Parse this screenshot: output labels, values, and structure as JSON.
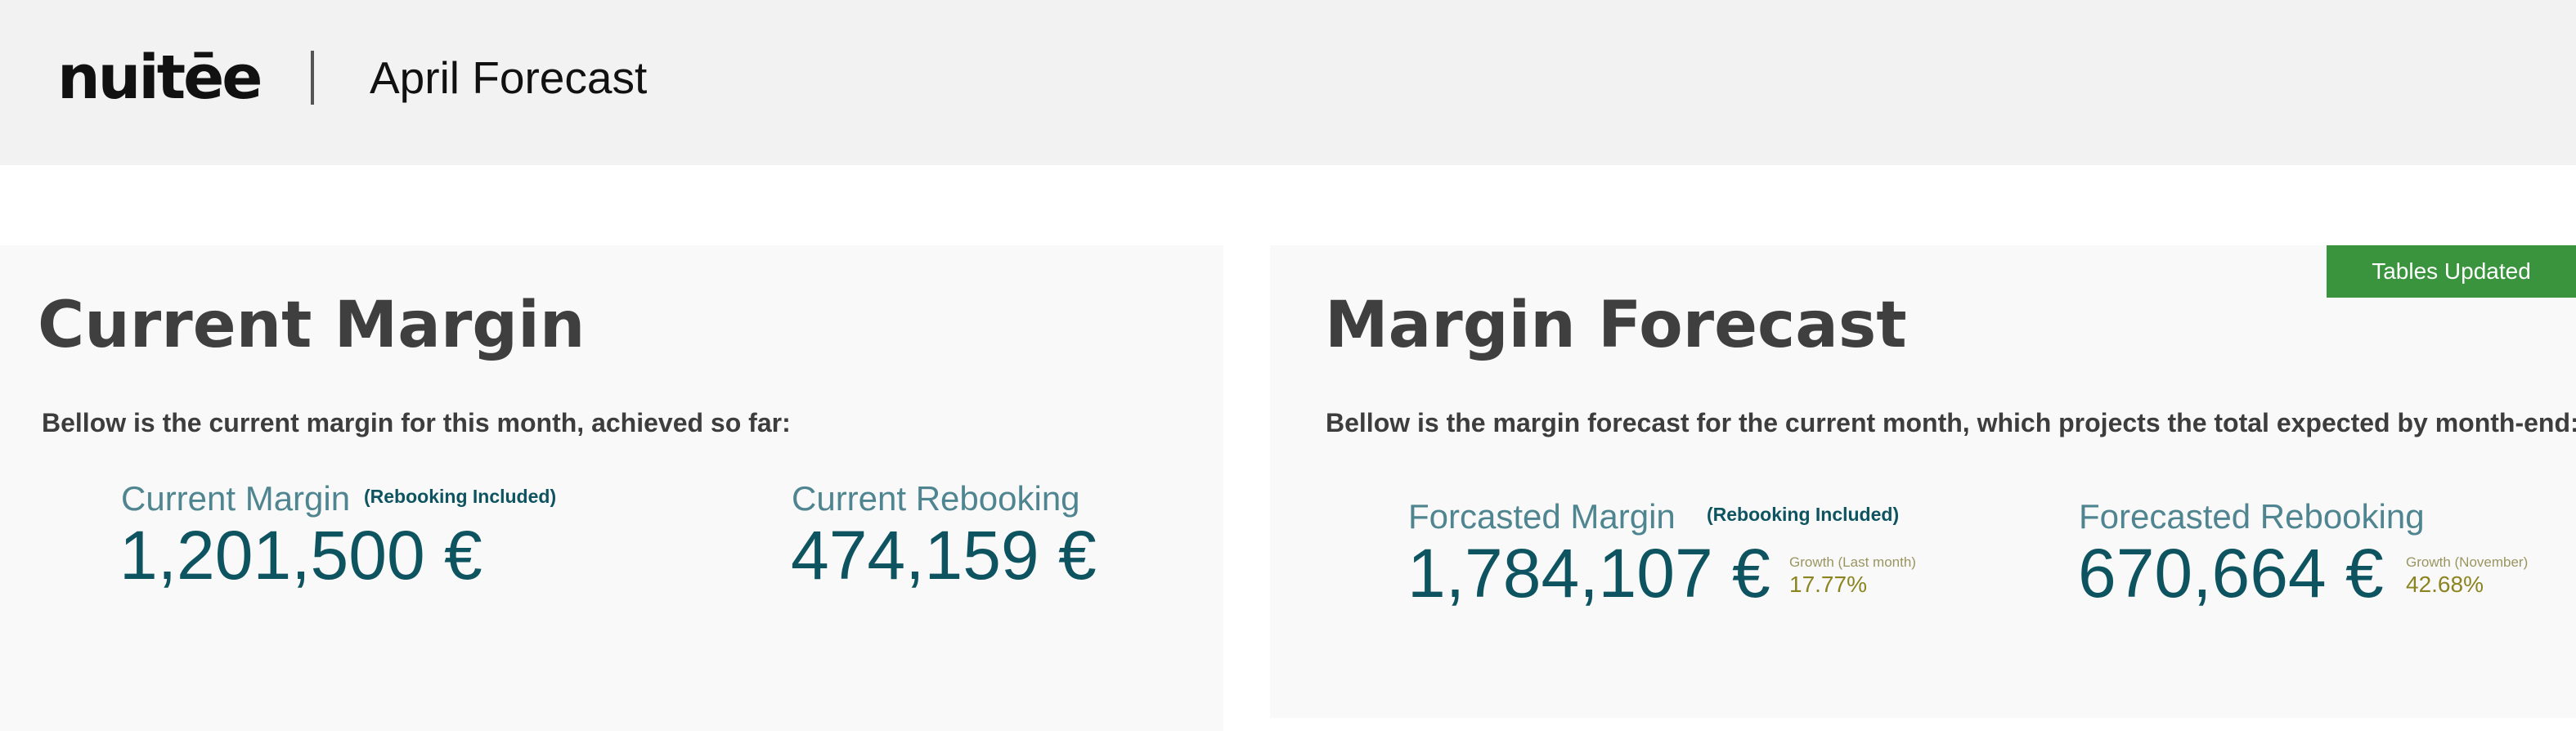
{
  "header": {
    "logo_text": "nuitēe",
    "page_title": "April Forecast"
  },
  "status_badge": {
    "label": "Tables Updated",
    "color": "#3a943d"
  },
  "current_margin_panel": {
    "title": "Current Margin",
    "description": "Bellow is the current margin for this month, achieved so far:",
    "margin": {
      "label": "Current Margin",
      "note": "(Rebooking Included)",
      "value": "1,201,500 €"
    },
    "rebooking": {
      "label": "Current Rebooking",
      "value": "474,159 €"
    }
  },
  "forecast_panel": {
    "title": "Margin Forecast",
    "description": "Bellow is the margin forecast for the current month, which projects the total expected by month-end:",
    "margin": {
      "label": "Forcasted Margin",
      "note": "(Rebooking Included)",
      "value": "1,784,107 €",
      "growth_label": "Growth (Last month)",
      "growth_value": "17.77%"
    },
    "rebooking": {
      "label": "Forecasted Rebooking",
      "value": "670,664 €",
      "growth_label": "Growth (November)",
      "growth_value": "42.68%"
    }
  },
  "colors": {
    "header_bg": "#f2f2f2",
    "panel_bg": "#f9f9f9",
    "title_text": "#3f3f3f",
    "metric_label": "#4f8590",
    "metric_value": "#0e5460",
    "growth_text": "#8c8420"
  }
}
